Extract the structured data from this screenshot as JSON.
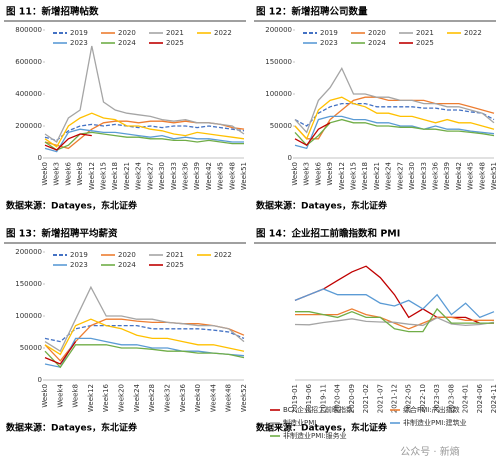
{
  "chart_data": [
    {
      "type": "line",
      "title": "图 11：新增招聘帖数",
      "source": "数据来源：Datayes，东北证券",
      "legend": "top",
      "categories": [
        "Week0",
        "Week3",
        "Week6",
        "Week9",
        "Week12",
        "Week15",
        "Week18",
        "Week21",
        "Week24",
        "Week27",
        "Week30",
        "Week33",
        "Week36",
        "Week39",
        "Week42",
        "Week45",
        "Week48",
        "Week51"
      ],
      "ylim": [
        0,
        800000
      ],
      "yticks": [
        0,
        200000,
        400000,
        600000,
        800000
      ],
      "series": [
        {
          "name": "2019",
          "color": "#4472c4",
          "dash": true,
          "values": [
            130000,
            110000,
            170000,
            200000,
            210000,
            200000,
            210000,
            200000,
            190000,
            200000,
            190000,
            200000,
            200000,
            190000,
            200000,
            190000,
            180000,
            170000
          ]
        },
        {
          "name": "2020",
          "color": "#ed7d31",
          "values": [
            100000,
            80000,
            60000,
            120000,
            180000,
            220000,
            230000,
            230000,
            220000,
            230000,
            230000,
            220000,
            230000,
            220000,
            220000,
            210000,
            190000,
            180000
          ]
        },
        {
          "name": "2021",
          "color": "#a5a5a5",
          "values": [
            150000,
            100000,
            250000,
            300000,
            700000,
            350000,
            300000,
            280000,
            270000,
            260000,
            240000,
            230000,
            240000,
            220000,
            220000,
            210000,
            200000,
            150000
          ]
        },
        {
          "name": "2022",
          "color": "#ffc000",
          "values": [
            120000,
            70000,
            200000,
            250000,
            280000,
            250000,
            240000,
            200000,
            200000,
            180000,
            170000,
            150000,
            140000,
            160000,
            150000,
            140000,
            130000,
            120000
          ]
        },
        {
          "name": "2023",
          "color": "#5b9bd5",
          "values": [
            60000,
            40000,
            160000,
            180000,
            170000,
            160000,
            160000,
            150000,
            140000,
            130000,
            140000,
            120000,
            130000,
            120000,
            120000,
            110000,
            100000,
            100000
          ]
        },
        {
          "name": "2024",
          "color": "#70ad47",
          "values": [
            100000,
            50000,
            80000,
            150000,
            160000,
            150000,
            140000,
            130000,
            130000,
            120000,
            120000,
            110000,
            110000,
            100000,
            110000,
            100000,
            90000,
            90000
          ]
        },
        {
          "name": "2025",
          "color": "#c00000",
          "values": [
            80000,
            50000,
            120000,
            150000,
            140000,
            null,
            null,
            null,
            null,
            null,
            null,
            null,
            null,
            null,
            null,
            null,
            null,
            null
          ]
        }
      ]
    },
    {
      "type": "line",
      "title": "图 12：新增招聘公司数量",
      "source": "数据来源：Datayes，东北证券",
      "legend": "top",
      "categories": [
        "Week0",
        "Week3",
        "Week6",
        "Week9",
        "Week12",
        "Week15",
        "Week18",
        "Week21",
        "Week24",
        "Week27",
        "Week30",
        "Week33",
        "Week36",
        "Week39",
        "Week42",
        "Week45",
        "Week48",
        "Week51"
      ],
      "ylim": [
        0,
        200000
      ],
      "yticks": [
        0,
        50000,
        100000,
        150000,
        200000
      ],
      "series": [
        {
          "name": "2019",
          "color": "#4472c4",
          "dash": true,
          "values": [
            60000,
            50000,
            70000,
            80000,
            85000,
            85000,
            85000,
            80000,
            80000,
            80000,
            80000,
            78000,
            78000,
            75000,
            75000,
            72000,
            70000,
            60000
          ]
        },
        {
          "name": "2020",
          "color": "#ed7d31",
          "values": [
            50000,
            30000,
            30000,
            60000,
            75000,
            90000,
            95000,
            95000,
            90000,
            90000,
            90000,
            90000,
            85000,
            85000,
            85000,
            80000,
            75000,
            70000
          ]
        },
        {
          "name": "2021",
          "color": "#a5a5a5",
          "values": [
            60000,
            40000,
            90000,
            110000,
            140000,
            100000,
            100000,
            95000,
            95000,
            90000,
            90000,
            85000,
            85000,
            80000,
            80000,
            75000,
            70000,
            55000
          ]
        },
        {
          "name": "2022",
          "color": "#ffc000",
          "values": [
            50000,
            30000,
            75000,
            90000,
            95000,
            85000,
            80000,
            70000,
            70000,
            65000,
            65000,
            60000,
            55000,
            60000,
            55000,
            55000,
            50000,
            45000
          ]
        },
        {
          "name": "2023",
          "color": "#5b9bd5",
          "values": [
            20000,
            15000,
            60000,
            65000,
            65000,
            60000,
            60000,
            55000,
            55000,
            50000,
            50000,
            45000,
            50000,
            45000,
            45000,
            42000,
            40000,
            38000
          ]
        },
        {
          "name": "2024",
          "color": "#70ad47",
          "values": [
            40000,
            20000,
            35000,
            55000,
            60000,
            55000,
            55000,
            50000,
            50000,
            48000,
            48000,
            45000,
            45000,
            42000,
            42000,
            40000,
            38000,
            35000
          ]
        },
        {
          "name": "2025",
          "color": "#c00000",
          "values": [
            30000,
            20000,
            45000,
            55000,
            null,
            null,
            null,
            null,
            null,
            null,
            null,
            null,
            null,
            null,
            null,
            null,
            null,
            null
          ]
        }
      ]
    },
    {
      "type": "line",
      "title": "图 13：新增招聘平均薪资",
      "source": "数据来源：Datayes，东北证券",
      "legend": "top",
      "categories": [
        "Week0",
        "Week4",
        "Week8",
        "Week12",
        "Week16",
        "Week20",
        "Week24",
        "Week28",
        "Week32",
        "Week36",
        "Week40",
        "Week44",
        "Week48",
        "Week52"
      ],
      "ylim": [
        0,
        200000
      ],
      "yticks": [
        0,
        50000,
        100000,
        150000,
        200000
      ],
      "series": [
        {
          "name": "2019",
          "color": "#4472c4",
          "dash": true,
          "values": [
            65000,
            60000,
            80000,
            85000,
            85000,
            85000,
            85000,
            80000,
            80000,
            80000,
            80000,
            78000,
            75000,
            65000
          ]
        },
        {
          "name": "2020",
          "color": "#ed7d31",
          "values": [
            55000,
            30000,
            60000,
            85000,
            95000,
            95000,
            92000,
            90000,
            90000,
            88000,
            88000,
            85000,
            80000,
            70000
          ]
        },
        {
          "name": "2021",
          "color": "#a5a5a5",
          "values": [
            60000,
            45000,
            95000,
            145000,
            100000,
            100000,
            95000,
            95000,
            90000,
            88000,
            85000,
            85000,
            80000,
            60000
          ]
        },
        {
          "name": "2022",
          "color": "#ffc000",
          "values": [
            55000,
            40000,
            85000,
            95000,
            85000,
            80000,
            70000,
            65000,
            65000,
            60000,
            55000,
            55000,
            50000,
            45000
          ]
        },
        {
          "name": "2023",
          "color": "#5b9bd5",
          "values": [
            25000,
            20000,
            65000,
            65000,
            60000,
            55000,
            55000,
            50000,
            50000,
            45000,
            45000,
            42000,
            40000,
            38000
          ]
        },
        {
          "name": "2024",
          "color": "#70ad47",
          "values": [
            45000,
            20000,
            55000,
            55000,
            55000,
            50000,
            50000,
            48000,
            45000,
            45000,
            42000,
            42000,
            40000,
            35000
          ]
        },
        {
          "name": "2025",
          "color": "#c00000",
          "values": [
            35000,
            25000,
            60000,
            null,
            null,
            null,
            null,
            null,
            null,
            null,
            null,
            null,
            null,
            null
          ]
        }
      ]
    },
    {
      "type": "line",
      "title": "图 14：企业招工前瞻指数和 PMI",
      "source": "数据来源：Datayes，东北证券",
      "legend": "bottom",
      "categories": [
        "2019-01",
        "2019-06",
        "2019-11",
        "2020-04",
        "2020-09",
        "2021-02",
        "2021-07",
        "2021-12",
        "2022-05",
        "2022-10",
        "2023-03",
        "2023-08",
        "2024-01",
        "2024-06",
        "2024-11"
      ],
      "ylim": [
        30,
        75
      ],
      "series": [
        {
          "name": "BCI:企业招工前瞻指数",
          "color": "#c00000",
          "values": [
            58,
            60,
            62,
            65,
            68,
            70,
            66,
            60,
            52,
            55,
            52,
            52,
            52,
            50,
            50
          ]
        },
        {
          "name": "综合PMI:产出指数",
          "color": "#ed7d31",
          "values": [
            53,
            53,
            53,
            53,
            55,
            53,
            52,
            50,
            48,
            50,
            52,
            52,
            51,
            51,
            51
          ]
        },
        {
          "name": "制造业PMI",
          "color": "#a5a5a5",
          "values": [
            49.5,
            49.4,
            50.2,
            50.8,
            51.5,
            50.6,
            50.4,
            50.3,
            49.6,
            49.2,
            51.9,
            49.7,
            49.2,
            49.5,
            50.3
          ]
        },
        {
          "name": "非制造业PMI:建筑业",
          "color": "#5b9bd5",
          "values": [
            58,
            60,
            62,
            60,
            60,
            60,
            57,
            56,
            58,
            55,
            60,
            53,
            57,
            52,
            54
          ]
        },
        {
          "name": "非制造业PMI:服务业",
          "color": "#70ad47",
          "values": [
            54,
            54,
            53,
            52,
            54,
            52,
            52,
            48,
            47,
            47,
            55,
            50,
            50,
            50,
            50
          ]
        }
      ]
    }
  ],
  "watermark": "公众号 · 新熵"
}
